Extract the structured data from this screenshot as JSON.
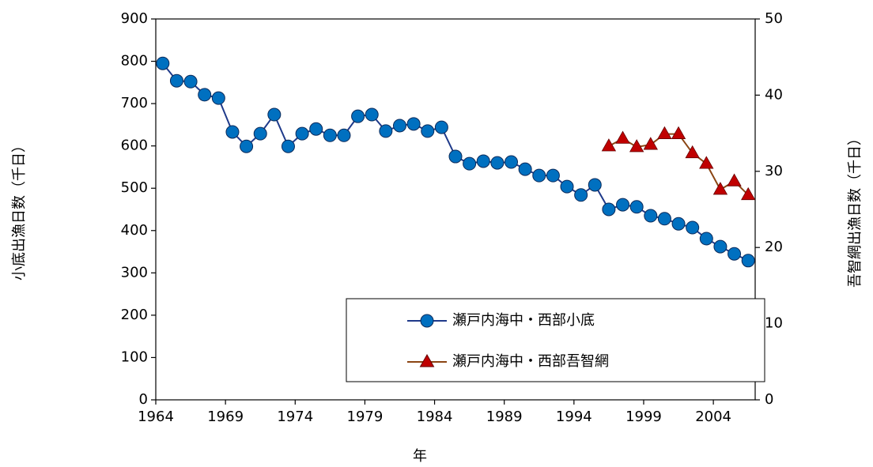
{
  "chart_data": {
    "type": "line",
    "x": [
      1964.5,
      1965.5,
      1966.5,
      1967.5,
      1968.5,
      1969.5,
      1970.5,
      1971.5,
      1972.5,
      1973.5,
      1974.5,
      1975.5,
      1976.5,
      1977.5,
      1978.5,
      1979.5,
      1980.5,
      1981.5,
      1982.5,
      1983.5,
      1984.5,
      1985.5,
      1986.5,
      1987.5,
      1988.5,
      1989.5,
      1990.5,
      1991.5,
      1992.5,
      1993.5,
      1994.5,
      1995.5,
      1996.5,
      1997.5,
      1998.5,
      1999.5,
      2000.5,
      2001.5,
      2002.5,
      2003.5,
      2004.5,
      2005.5,
      2006.5
    ],
    "series": [
      {
        "name": "瀬戸内海中・西部小底",
        "color": "#0070c0",
        "line_color": "#1f3a8a",
        "marker": "circle",
        "values": [
          795,
          754,
          752,
          721,
          713,
          633,
          599,
          629,
          674,
          599,
          629,
          640,
          625,
          625,
          670,
          674,
          635,
          648,
          652,
          635,
          644,
          575,
          558,
          564,
          560,
          562,
          545,
          530,
          530,
          504,
          484,
          508,
          450,
          461,
          456,
          435,
          428,
          416,
          407,
          381,
          362,
          345,
          329
        ]
      },
      {
        "name": "瀬戸内海中・西部吾智網",
        "color": "#c00000",
        "line_color": "#8b4513",
        "marker": "triangle",
        "axis": "y2",
        "values": [
          null,
          null,
          null,
          null,
          null,
          null,
          null,
          null,
          null,
          null,
          null,
          null,
          null,
          null,
          null,
          null,
          null,
          null,
          null,
          null,
          null,
          null,
          null,
          null,
          null,
          null,
          null,
          null,
          null,
          null,
          null,
          null,
          33.3,
          34.3,
          33.2,
          33.5,
          34.9,
          34.9,
          32.4,
          31.0,
          27.6,
          28.7,
          26.9
        ]
      }
    ],
    "xlim": [
      1964,
      2007
    ],
    "xticks": [
      1964,
      1969,
      1974,
      1979,
      1984,
      1989,
      1994,
      1999,
      2004
    ],
    "ylim": [
      0,
      900
    ],
    "yticks": [
      0,
      100,
      200,
      300,
      400,
      500,
      600,
      700,
      800,
      900
    ],
    "y2lim": [
      0,
      50
    ],
    "y2ticks": [
      0,
      10,
      20,
      30,
      40,
      50
    ],
    "x_label": "年",
    "y_label": "小底出漁日数（千日）",
    "y2_label": "吾智網出漁日数（千日）",
    "grid": false,
    "legend_position": "lower right"
  }
}
